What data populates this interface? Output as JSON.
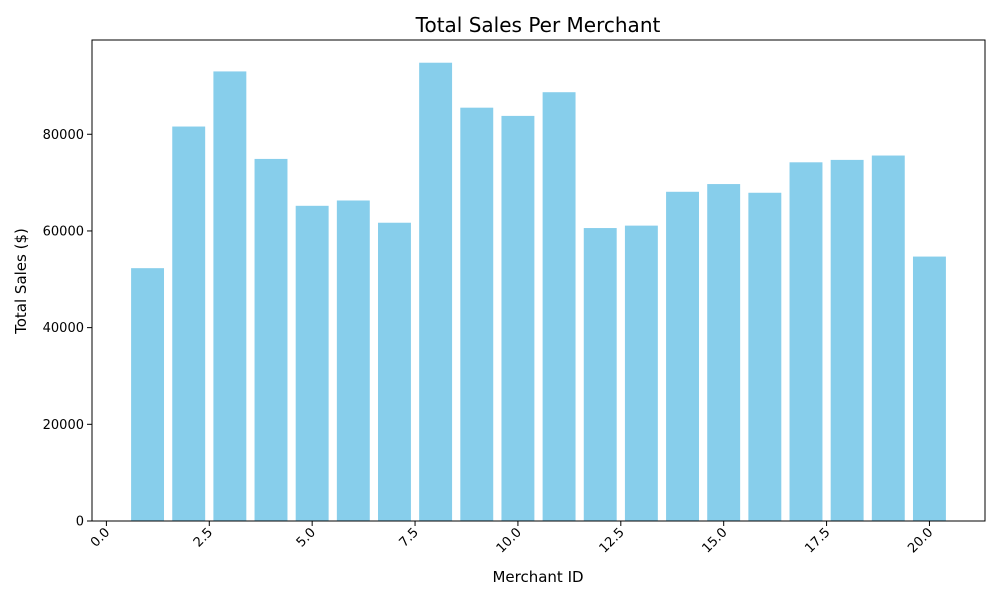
{
  "chart_data": {
    "type": "bar",
    "title": "Total Sales Per Merchant",
    "xlabel": "Merchant ID",
    "ylabel": "Total Sales ($)",
    "x": [
      1,
      2,
      3,
      4,
      5,
      6,
      7,
      8,
      9,
      10,
      11,
      12,
      13,
      14,
      15,
      16,
      17,
      18,
      19,
      20
    ],
    "values": [
      52300,
      81600,
      93000,
      74900,
      65200,
      66300,
      61700,
      94800,
      85500,
      83800,
      88700,
      60600,
      61100,
      68100,
      69700,
      67900,
      74200,
      74700,
      75600,
      54700
    ],
    "xlim": [
      -0.35,
      21.35
    ],
    "ylim": [
      0,
      99500
    ],
    "xticks": [
      0.0,
      2.5,
      5.0,
      7.5,
      10.0,
      12.5,
      15.0,
      17.5,
      20.0
    ],
    "xtick_labels": [
      "0.0",
      "2.5",
      "5.0",
      "7.5",
      "10.0",
      "12.5",
      "15.0",
      "17.5",
      "20.0"
    ],
    "yticks": [
      0,
      20000,
      40000,
      60000,
      80000
    ],
    "ytick_labels": [
      "0",
      "20000",
      "40000",
      "60000",
      "80000"
    ],
    "bar_color": "#87ceeb",
    "grid": false,
    "legend": "none"
  }
}
